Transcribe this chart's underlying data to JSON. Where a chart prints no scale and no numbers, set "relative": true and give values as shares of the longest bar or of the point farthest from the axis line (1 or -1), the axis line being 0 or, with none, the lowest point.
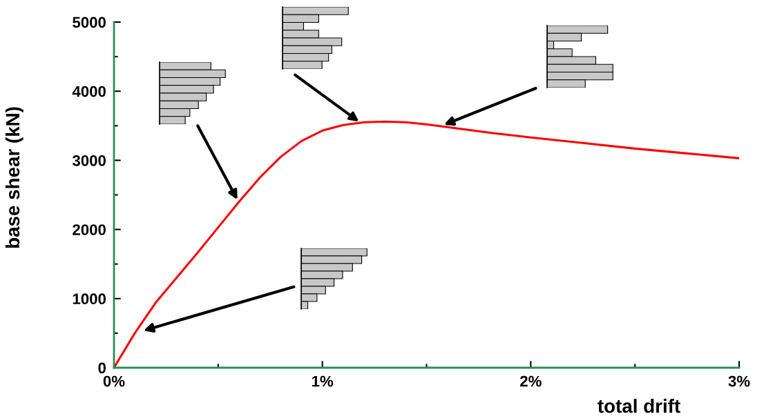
{
  "chart_data": [
    {
      "type": "line",
      "xlabel": "total drift",
      "ylabel": "base shear (kN)",
      "x": [
        0,
        0.1,
        0.2,
        0.3,
        0.4,
        0.5,
        0.6,
        0.7,
        0.8,
        0.9,
        1.0,
        1.1,
        1.2,
        1.3,
        1.4,
        1.5,
        1.6,
        1.8,
        2.0,
        2.25,
        2.5,
        2.75,
        3.0
      ],
      "series": [
        {
          "color": "#ff0000",
          "values": [
            0,
            500,
            940,
            1300,
            1660,
            2030,
            2400,
            2750,
            3050,
            3280,
            3430,
            3510,
            3550,
            3560,
            3550,
            3520,
            3480,
            3400,
            3330,
            3250,
            3170,
            3100,
            3030
          ]
        }
      ],
      "xlim": [
        0,
        3
      ],
      "ylim": [
        0,
        5000
      ],
      "xticks": [
        {
          "value": 0,
          "label": "0%"
        },
        {
          "value": 1,
          "label": "1%"
        },
        {
          "value": 2,
          "label": "2%"
        },
        {
          "value": 3,
          "label": "3%"
        }
      ],
      "yticks": [
        0,
        1000,
        2000,
        3000,
        4000,
        5000
      ],
      "grid": false,
      "legend": false,
      "marker": "none",
      "line_style": "solid"
    },
    {
      "type": "bar",
      "orientation": "horizontal",
      "relative": true,
      "categories": [
        null,
        null,
        null,
        null,
        null,
        null,
        null,
        null
      ],
      "color": "#c8c8c8",
      "values": [
        0.78,
        1.0,
        0.92,
        0.82,
        0.71,
        0.59,
        0.46,
        0.39
      ]
    },
    {
      "type": "bar",
      "orientation": "horizontal",
      "relative": true,
      "categories": [
        null,
        null,
        null,
        null,
        null,
        null,
        null,
        null
      ],
      "color": "#c8c8c8",
      "values": [
        1.0,
        0.55,
        0.32,
        0.55,
        0.9,
        0.75,
        0.7,
        0.6
      ]
    },
    {
      "type": "bar",
      "orientation": "horizontal",
      "relative": true,
      "categories": [
        null,
        null,
        null,
        null,
        null,
        null,
        null,
        null
      ],
      "color": "#c8c8c8",
      "values": [
        0.92,
        0.52,
        0.1,
        0.38,
        0.74,
        1.0,
        1.0,
        0.58
      ]
    },
    {
      "type": "bar",
      "orientation": "horizontal",
      "relative": true,
      "categories": [
        null,
        null,
        null,
        null,
        null,
        null,
        null,
        null
      ],
      "color": "#c8c8c8",
      "values": [
        1.0,
        0.92,
        0.78,
        0.63,
        0.5,
        0.37,
        0.24,
        0.1
      ]
    }
  ]
}
